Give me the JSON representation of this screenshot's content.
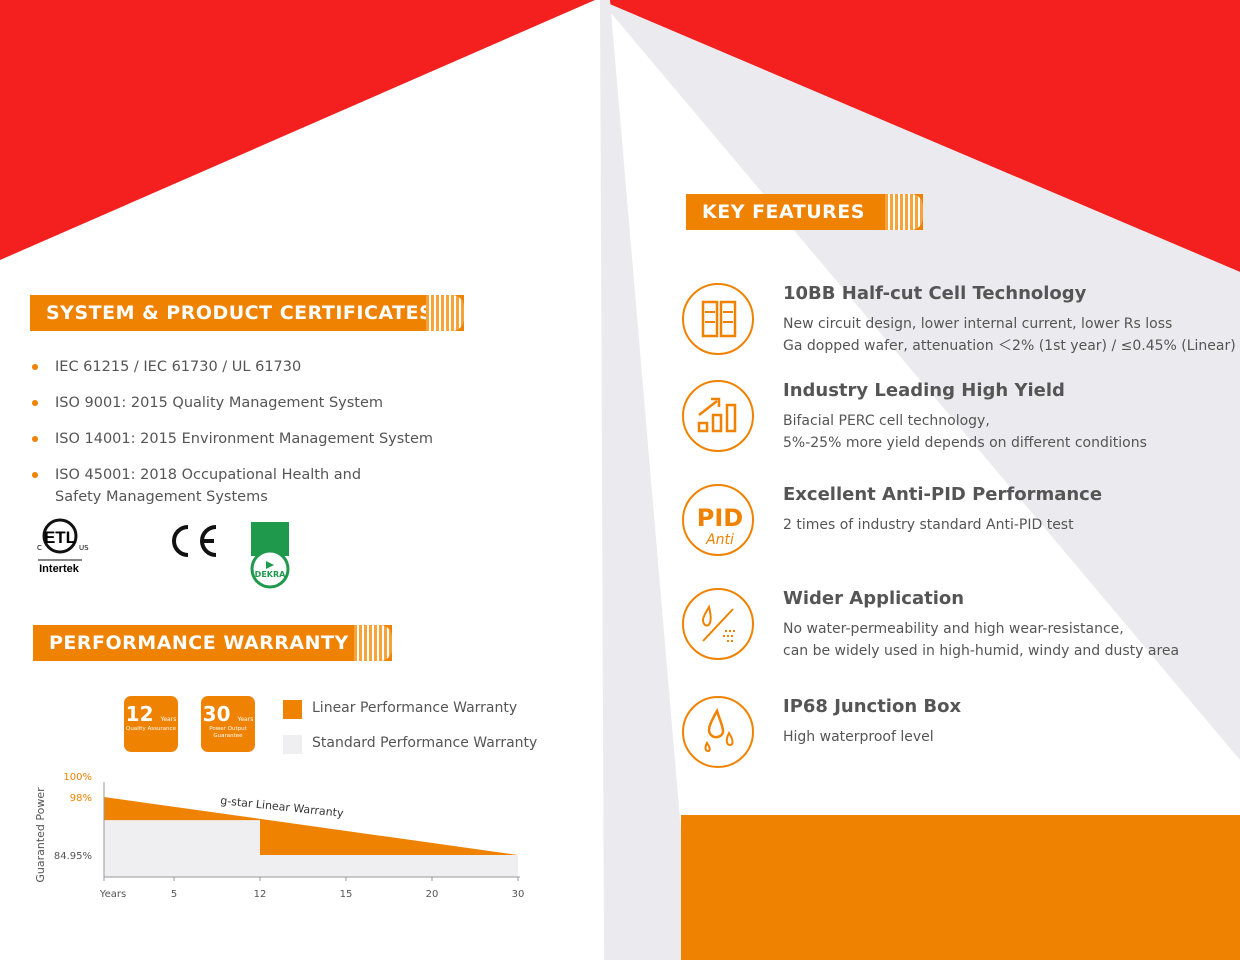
{
  "colors": {
    "accent": "#ef8200",
    "red": "#f41f1f",
    "light_gray": "#ebebef"
  },
  "certificates": {
    "title": "SYSTEM & PRODUCT CERTIFICATES",
    "items": [
      "IEC 61215 / IEC 61730 / UL 61730",
      "ISO 9001: 2015 Quality Management System",
      "ISO 14001: 2015 Environment Management System",
      "ISO 45001: 2018 Occupational Health and Safety Management Systems"
    ],
    "logos": [
      "Intertek ETL c-us",
      "CE",
      "DEKRA"
    ]
  },
  "warranty": {
    "title": "PERFORMANCE WARRANTY",
    "badges": [
      {
        "number": "12",
        "unit": "Years",
        "caption": "Quality Assurance"
      },
      {
        "number": "30",
        "unit": "Years",
        "caption": "Power Output Guarantee"
      }
    ],
    "legend": [
      "Linear Performance Warranty",
      "Standard Performance Warranty"
    ]
  },
  "chart_data": {
    "type": "area",
    "ylabel": "Guaranted Power",
    "xlabel": "Years",
    "x_ticks": [
      "Years",
      "5",
      "12",
      "15",
      "20",
      "30"
    ],
    "y_ticks": [
      "100%",
      "98%",
      "84.95%"
    ],
    "annotation": "g-star Linear Warranty",
    "series": [
      {
        "name": "Linear Performance Warranty",
        "points": [
          [
            0,
            98
          ],
          [
            30,
            84.95
          ]
        ]
      },
      {
        "name": "Standard Performance Warranty",
        "points": [
          [
            0,
            92.8
          ],
          [
            12,
            92.8
          ],
          [
            12,
            84.95
          ],
          [
            30,
            84.95
          ]
        ]
      }
    ]
  },
  "features": {
    "title": "KEY FEATURES",
    "items": [
      {
        "icon": "half-cut-cell-icon",
        "title": "10BB Half-cut Cell Technology",
        "lines": [
          "New circuit design, lower internal current, lower Rs loss",
          "Ga dopped wafer, attenuation ＜2% (1st year) / ≤0.45% (Linear)"
        ]
      },
      {
        "icon": "yield-chart-icon",
        "title": "Industry Leading High Yield",
        "lines": [
          "Bifacial PERC cell technology,",
          "5%-25% more yield depends on different conditions"
        ]
      },
      {
        "icon": "pid-icon",
        "title": "Excellent Anti-PID Performance",
        "lines": [
          "2 times of industry standard Anti-PID test"
        ],
        "icon_text": [
          "PID",
          "Anti"
        ]
      },
      {
        "icon": "water-wind-icon",
        "title": "Wider Application",
        "lines": [
          "No water-permeability and high wear-resistance,",
          "can be widely used in high-humid, windy and dusty area"
        ]
      },
      {
        "icon": "water-drop-icon",
        "title": "IP68 Junction Box",
        "lines": [
          "High waterproof level"
        ]
      }
    ]
  }
}
